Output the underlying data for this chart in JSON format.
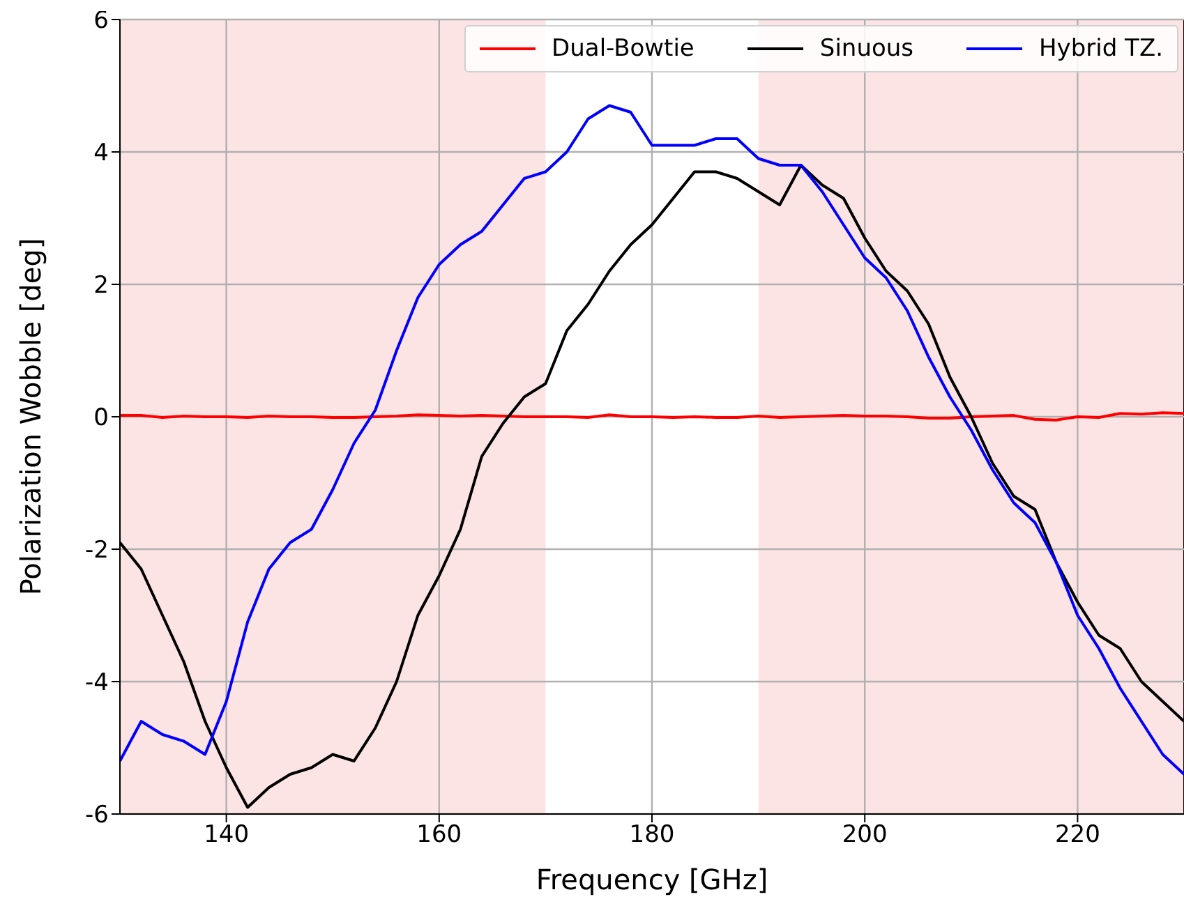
{
  "chart_data": {
    "type": "line",
    "xlabel": "Frequency [GHz]",
    "ylabel": "Polarization Wobble [deg]",
    "x": [
      130,
      132,
      134,
      136,
      138,
      140,
      142,
      144,
      146,
      148,
      150,
      152,
      154,
      156,
      158,
      160,
      162,
      164,
      166,
      168,
      170,
      172,
      174,
      176,
      178,
      180,
      182,
      184,
      186,
      188,
      190,
      192,
      194,
      196,
      198,
      200,
      202,
      204,
      206,
      208,
      210,
      212,
      214,
      216,
      218,
      220,
      222,
      224,
      226,
      228,
      230
    ],
    "series": [
      {
        "name": "Dual-Bowtie",
        "color": "#ff0000",
        "values": [
          0.02,
          0.02,
          -0.01,
          0.01,
          0,
          0,
          -0.01,
          0.01,
          0,
          0,
          -0.01,
          -0.01,
          0,
          0.01,
          0.03,
          0.02,
          0.01,
          0.02,
          0.01,
          0,
          0,
          0,
          -0.01,
          0.03,
          0,
          0,
          -0.01,
          0,
          -0.01,
          -0.01,
          0.01,
          -0.01,
          0,
          0.01,
          0.02,
          0.01,
          0.01,
          0,
          -0.02,
          -0.02,
          0,
          0.01,
          0.02,
          -0.04,
          -0.05,
          0,
          -0.01,
          0.05,
          0.04,
          0.06,
          0.05
        ]
      },
      {
        "name": "Sinuous",
        "color": "#000000",
        "values": [
          -1.9,
          -2.3,
          -3.0,
          -3.7,
          -4.6,
          -5.3,
          -5.9,
          -5.6,
          -5.4,
          -5.3,
          -5.1,
          -5.2,
          -4.7,
          -4.0,
          -3.0,
          -2.4,
          -1.7,
          -0.6,
          -0.1,
          0.3,
          0.5,
          1.3,
          1.7,
          2.2,
          2.6,
          2.9,
          3.3,
          3.7,
          3.7,
          3.6,
          3.4,
          3.2,
          3.8,
          3.5,
          3.3,
          2.7,
          2.2,
          1.9,
          1.4,
          0.6,
          0.0,
          -0.7,
          -1.2,
          -1.4,
          -2.2,
          -2.8,
          -3.3,
          -3.5,
          -4.0,
          -4.3,
          -4.6
        ]
      },
      {
        "name": "Hybrid TZ.",
        "color": "#0000ff",
        "values": [
          -5.2,
          -4.6,
          -4.8,
          -4.9,
          -5.1,
          -4.3,
          -3.1,
          -2.3,
          -1.9,
          -1.7,
          -1.1,
          -0.4,
          0.1,
          1.0,
          1.8,
          2.3,
          2.6,
          2.8,
          3.2,
          3.6,
          3.7,
          4.0,
          4.5,
          4.7,
          4.6,
          4.1,
          4.1,
          4.1,
          4.2,
          4.2,
          3.9,
          3.8,
          3.8,
          3.4,
          2.9,
          2.4,
          2.1,
          1.6,
          0.9,
          0.3,
          -0.2,
          -0.8,
          -1.3,
          -1.6,
          -2.2,
          -3.0,
          -3.5,
          -4.1,
          -4.6,
          -5.1,
          -5.4
        ]
      }
    ],
    "xlim": [
      130,
      230
    ],
    "xticks": [
      140,
      160,
      180,
      200,
      220
    ],
    "ylim": [
      -6,
      6
    ],
    "yticks": [
      -6,
      -4,
      -2,
      0,
      2,
      4,
      6
    ],
    "bands": [
      {
        "axis": "x",
        "from": 130,
        "to": 170,
        "color": "#fde4e4"
      },
      {
        "axis": "x",
        "from": 190,
        "to": 230,
        "color": "#fde4e4"
      }
    ],
    "grid": true,
    "legend": "top right",
    "marker": "none",
    "line_style": "solid"
  }
}
